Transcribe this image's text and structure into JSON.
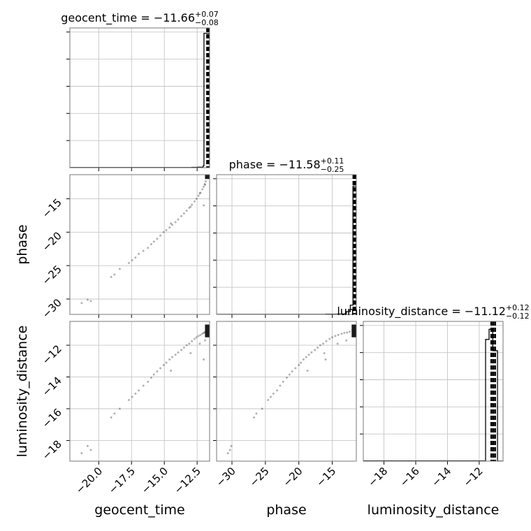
{
  "chart_data": {
    "type": "corner",
    "parameters": [
      {
        "name": "geocent_time",
        "title": {
          "prefix": "geocent_time = ",
          "value": "−11.66",
          "plus": "+0.07",
          "minus": "−0.08"
        },
        "axis_label": "geocent_time",
        "lim": [
          -22.2,
          -11.55
        ],
        "ticks": [
          -20.0,
          -17.5,
          -15.0,
          -12.5
        ],
        "tick_labels": [
          "−20.0",
          "−17.5",
          "−15.0",
          "−12.5"
        ],
        "quantiles": [
          -11.74,
          -11.66,
          -11.59
        ],
        "hist": {
          "edges": [
            -22.2,
            -12.9,
            -12.45,
            -12.05,
            -11.98,
            -11.55
          ],
          "counts": [
            0.5,
            1.0,
            1.5,
            5.0,
            380.0
          ],
          "ymax": 395
        }
      },
      {
        "name": "phase",
        "title": {
          "prefix": "phase = ",
          "value": "−11.58",
          "plus": "+0.11",
          "minus": "−0.25"
        },
        "axis_label": "phase",
        "lim": [
          -32.3,
          -11.4
        ],
        "ticks": [
          -30,
          -25,
          -20,
          -15
        ],
        "tick_labels": [
          "−30",
          "−25",
          "−20",
          "−15"
        ],
        "quantiles": [
          -11.83,
          -11.58,
          -11.47
        ],
        "hist": {
          "edges": [
            -32.3,
            -16.0,
            -14.2,
            -12.9,
            -12.3,
            -11.9,
            -11.4
          ],
          "counts": [
            0.4,
            1.0,
            2.0,
            12.0,
            40.0,
            555.0
          ],
          "ymax": 605
        }
      },
      {
        "name": "luminosity_distance",
        "title": {
          "prefix": "luminosity_distance = ",
          "value": "−11.12",
          "plus": "+0.12",
          "minus": "−0.12"
        },
        "axis_label": "luminosity_distance",
        "lim": [
          -19.3,
          -10.5
        ],
        "ticks": [
          -18,
          -16,
          -14,
          -12
        ],
        "tick_labels": [
          "−18",
          "−16",
          "−14",
          "−12"
        ],
        "quantiles": [
          -11.24,
          -11.12,
          -11.0
        ],
        "hist": {
          "edges": [
            -19.3,
            -11.6,
            -11.38,
            -11.15,
            -10.85,
            -10.5
          ],
          "counts": [
            1.0,
            540.0,
            585.0,
            490.0,
            0.5
          ],
          "ymax": 620
        }
      }
    ],
    "samples": [
      [
        -21.3,
        -30.6,
        -18.8
      ],
      [
        -20.85,
        -30.1,
        -18.35
      ],
      [
        -20.6,
        -30.3,
        -18.6
      ],
      [
        -19.05,
        -26.7,
        -16.55
      ],
      [
        -18.8,
        -26.35,
        -16.3
      ],
      [
        -18.4,
        -25.5,
        -16.0
      ],
      [
        -17.7,
        -24.6,
        -15.45
      ],
      [
        -17.45,
        -24.2,
        -15.25
      ],
      [
        -17.2,
        -23.8,
        -15.05
      ],
      [
        -16.95,
        -23.25,
        -14.85
      ],
      [
        -16.6,
        -22.8,
        -14.55
      ],
      [
        -16.25,
        -22.35,
        -14.3
      ],
      [
        -16.0,
        -21.8,
        -14.05
      ],
      [
        -15.8,
        -21.4,
        -13.85
      ],
      [
        -15.55,
        -21.0,
        -13.65
      ],
      [
        -15.3,
        -20.5,
        -13.45
      ],
      [
        -15.05,
        -20.0,
        -13.25
      ],
      [
        -14.85,
        -19.7,
        -13.1
      ],
      [
        -14.6,
        -19.3,
        -12.9
      ],
      [
        -14.4,
        -18.9,
        -12.75
      ],
      [
        -14.15,
        -18.5,
        -12.6
      ],
      [
        -13.95,
        -18.1,
        -12.45
      ],
      [
        -13.7,
        -17.6,
        -12.3
      ],
      [
        -13.5,
        -17.2,
        -12.15
      ],
      [
        -13.3,
        -16.8,
        -12.0
      ],
      [
        -13.1,
        -16.35,
        -11.9
      ],
      [
        -12.9,
        -15.9,
        -11.75
      ],
      [
        -12.7,
        -15.4,
        -11.6
      ],
      [
        -12.55,
        -15.0,
        -11.5
      ],
      [
        -12.4,
        -14.55,
        -11.42
      ],
      [
        -12.25,
        -14.1,
        -11.35
      ],
      [
        -12.1,
        -13.6,
        -11.28
      ],
      [
        -12.0,
        -13.2,
        -11.22
      ],
      [
        -11.92,
        -12.8,
        -11.2
      ],
      [
        -11.85,
        -12.4,
        -11.15
      ],
      [
        -14.5,
        -18.7,
        -13.6
      ],
      [
        -13.0,
        -16.2,
        -12.5
      ],
      [
        -12.3,
        -14.2,
        -11.9
      ],
      [
        -11.9,
        -12.9,
        -11.7
      ],
      [
        -12.0,
        -16.0,
        -12.9
      ]
    ],
    "hist2d": [
      {
        "x_param": 0,
        "y_param": 1,
        "x_range": [
          -11.9,
          -11.55
        ],
        "y_range": [
          -12.05,
          -11.4
        ]
      },
      {
        "x_param": 0,
        "y_param": 2,
        "x_range": [
          -11.9,
          -11.55
        ],
        "y_range": [
          -11.5,
          -10.7
        ]
      },
      {
        "x_param": 1,
        "y_param": 2,
        "x_range": [
          -12.1,
          -11.4
        ],
        "y_range": [
          -11.5,
          -10.7
        ]
      }
    ],
    "grid": true,
    "legend": "none"
  }
}
